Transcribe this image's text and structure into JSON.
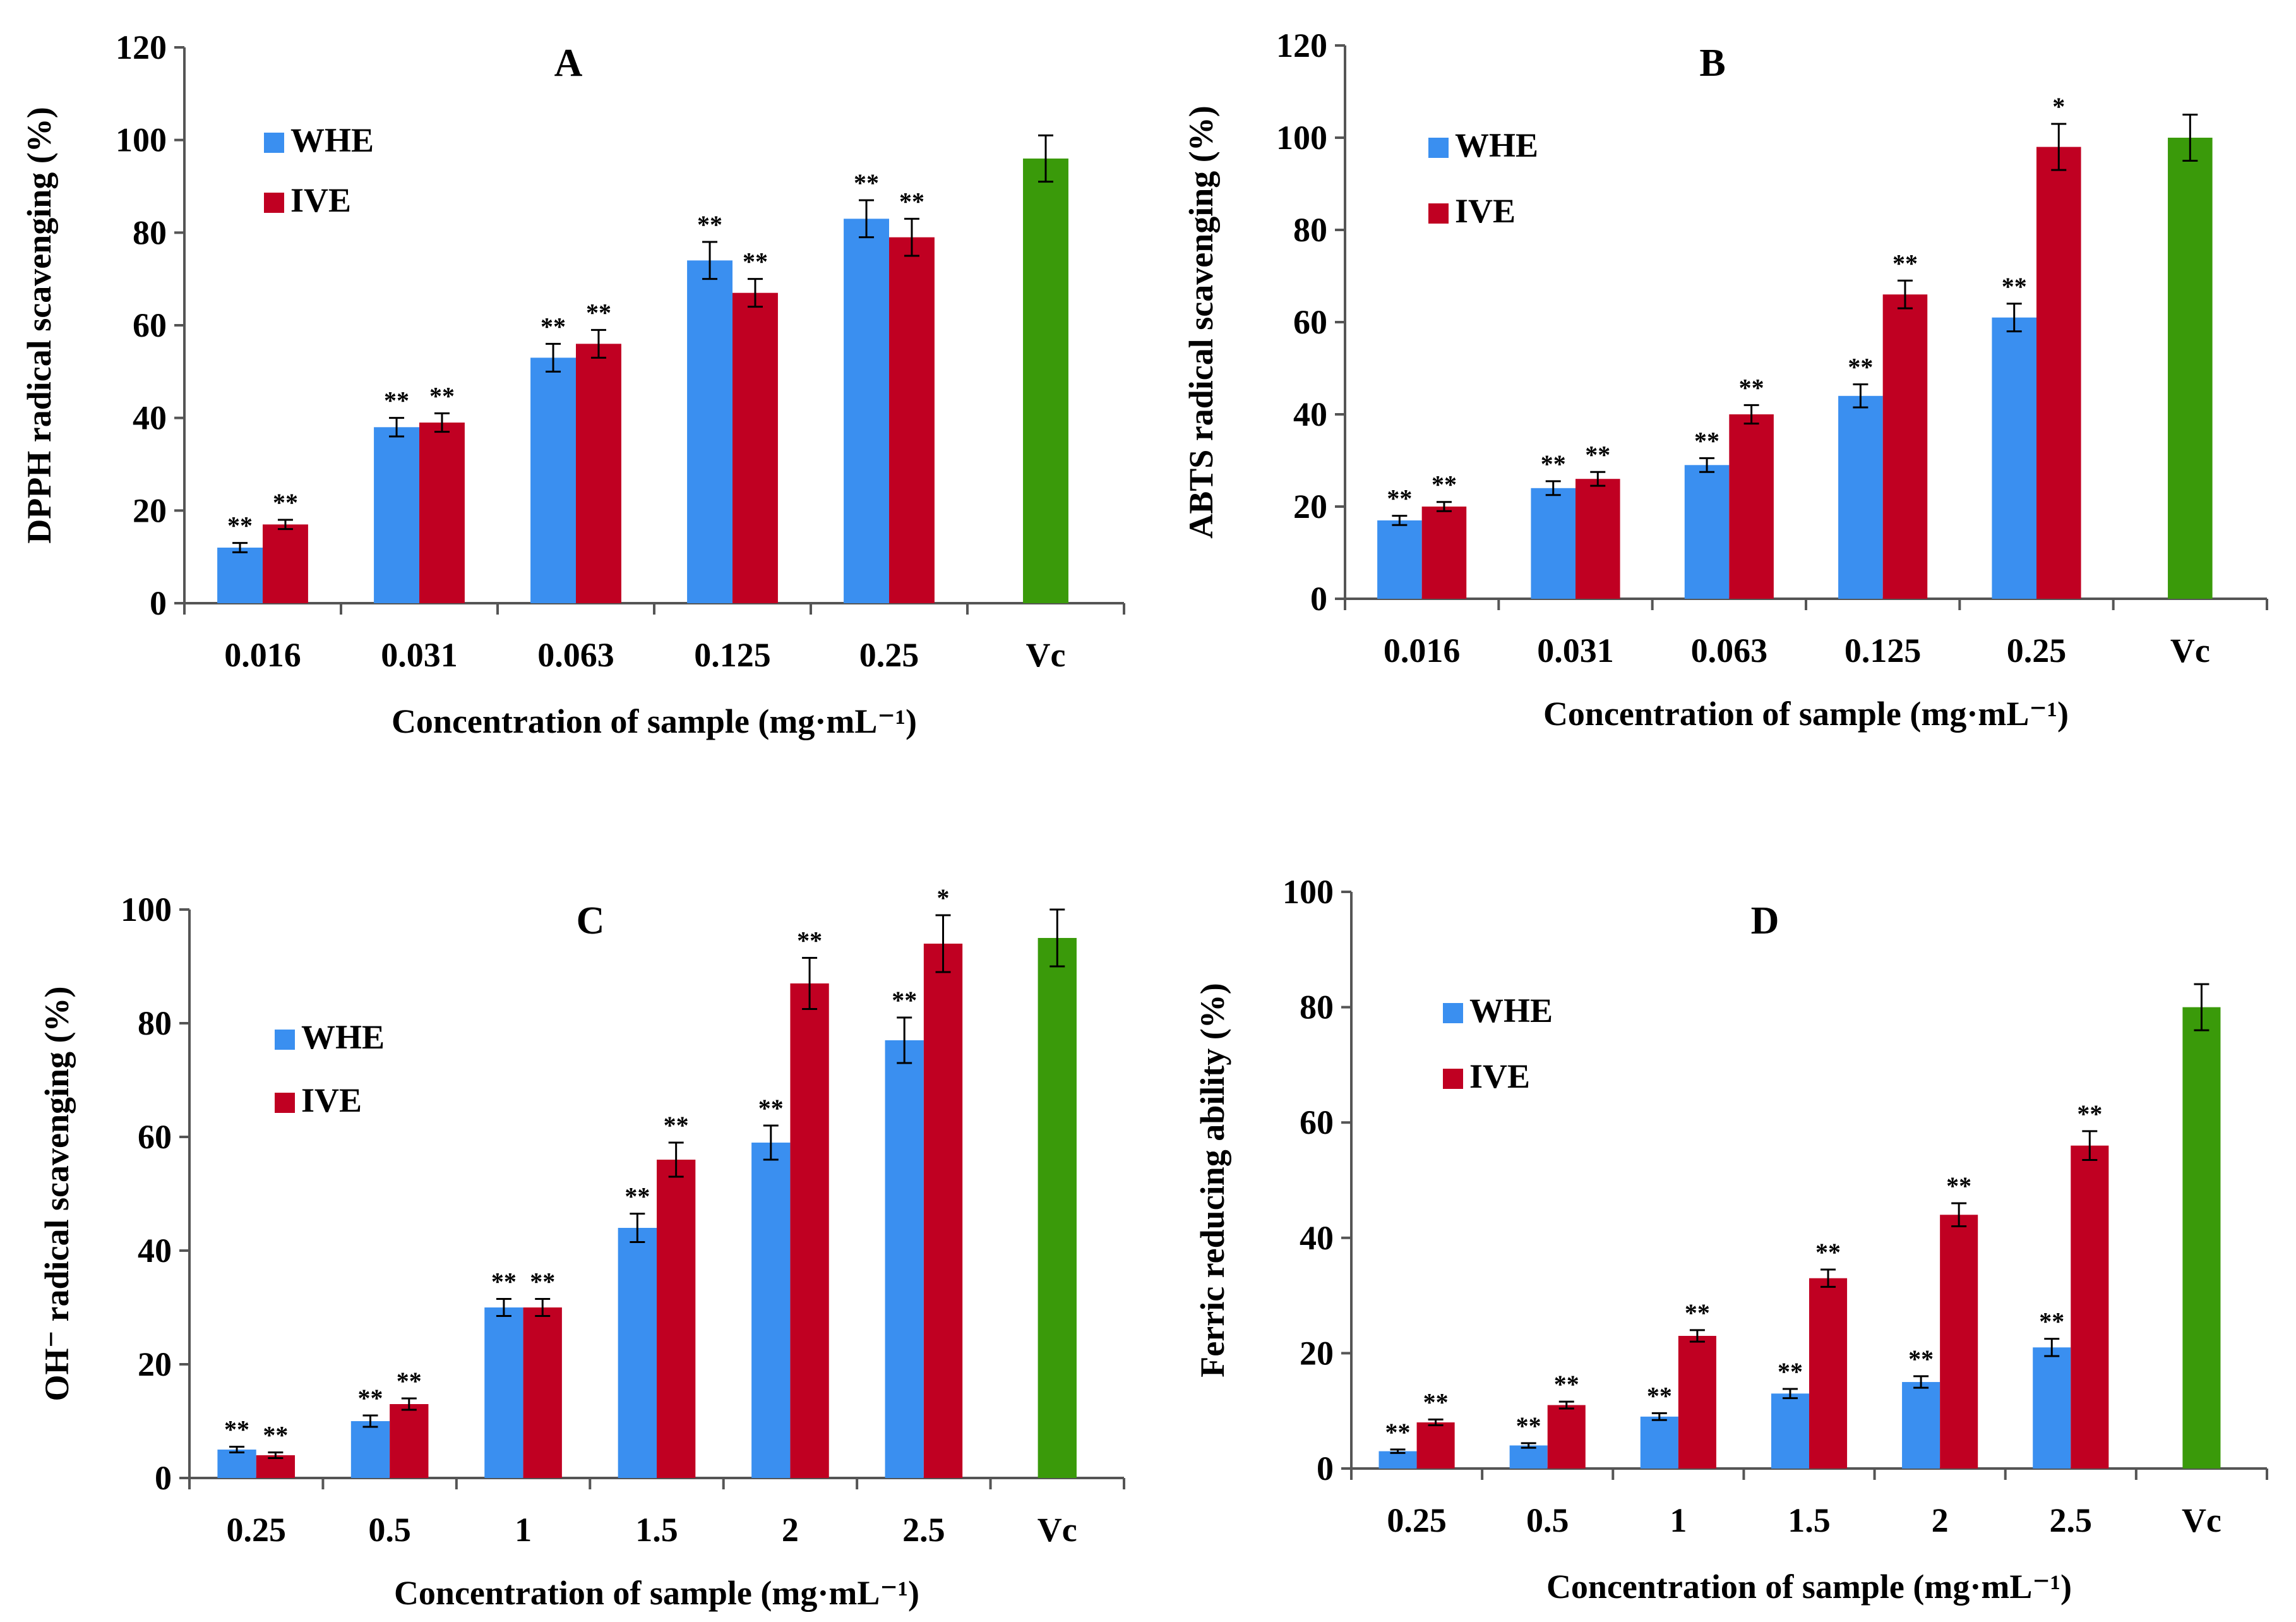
{
  "colors": {
    "WHE": "#3a8ff0",
    "IVE": "#c00022",
    "Vc": "#3a9a0a"
  },
  "chart_data": [
    {
      "type": "bar",
      "title": "A",
      "xlabel": "Concentration of sample",
      "xlabel_unit": "(mg·mL⁻¹)",
      "ylabel": "DPPH radical scavenging (%)",
      "ylim": [
        0,
        120
      ],
      "yticks": [
        0,
        20,
        40,
        60,
        80,
        100,
        120
      ],
      "categories": [
        "0.016",
        "0.031",
        "0.063",
        "0.125",
        "0.25",
        "Vc"
      ],
      "legend": [
        "WHE",
        "IVE"
      ],
      "series": [
        {
          "name": "WHE",
          "values": [
            12,
            38,
            53,
            74,
            83,
            null
          ],
          "errors": [
            1,
            2,
            3,
            4,
            4,
            null
          ],
          "sig": [
            "**",
            "**",
            "**",
            "**",
            "**",
            ""
          ]
        },
        {
          "name": "IVE",
          "values": [
            17,
            39,
            56,
            67,
            79,
            null
          ],
          "errors": [
            1,
            2,
            3,
            3,
            4,
            null
          ],
          "sig": [
            "**",
            "**",
            "**",
            "**",
            "**",
            ""
          ]
        },
        {
          "name": "Vc",
          "values": [
            null,
            null,
            null,
            null,
            null,
            96
          ],
          "errors": [
            null,
            null,
            null,
            null,
            null,
            5
          ],
          "sig": [
            "",
            "",
            "",
            "",
            "",
            ""
          ]
        }
      ]
    },
    {
      "type": "bar",
      "title": "B",
      "xlabel": "Concentration of sample",
      "xlabel_unit": "(mg·mL⁻¹)",
      "ylabel": "ABTS  radical scavenging (%)",
      "ylim": [
        0,
        120
      ],
      "yticks": [
        0,
        20,
        40,
        60,
        80,
        100,
        120
      ],
      "categories": [
        "0.016",
        "0.031",
        "0.063",
        "0.125",
        "0.25",
        "Vc"
      ],
      "legend": [
        "WHE",
        "IVE"
      ],
      "series": [
        {
          "name": "WHE",
          "values": [
            17,
            24,
            29,
            44,
            61,
            null
          ],
          "errors": [
            1,
            1.5,
            1.5,
            2.5,
            3,
            null
          ],
          "sig": [
            "**",
            "**",
            "**",
            "**",
            "**",
            ""
          ]
        },
        {
          "name": "IVE",
          "values": [
            20,
            26,
            40,
            66,
            98,
            null
          ],
          "errors": [
            1,
            1.5,
            2,
            3,
            5,
            null
          ],
          "sig": [
            "**",
            "**",
            "**",
            "**",
            "*",
            ""
          ]
        },
        {
          "name": "Vc",
          "values": [
            null,
            null,
            null,
            null,
            null,
            100
          ],
          "errors": [
            null,
            null,
            null,
            null,
            null,
            5
          ],
          "sig": [
            "",
            "",
            "",
            "",
            "",
            ""
          ]
        }
      ]
    },
    {
      "type": "bar",
      "title": "C",
      "xlabel": "Concentration of sample",
      "xlabel_unit": "(mg·mL⁻¹)",
      "ylabel": "OH⁻ radical scavenging (%)",
      "ylim": [
        0,
        100
      ],
      "yticks": [
        0,
        20,
        40,
        60,
        80,
        100
      ],
      "categories": [
        "0.25",
        "0.5",
        "1",
        "1.5",
        "2",
        "2.5",
        "Vc"
      ],
      "legend": [
        "WHE",
        "IVE"
      ],
      "series": [
        {
          "name": "WHE",
          "values": [
            5,
            10,
            30,
            44,
            59,
            77,
            null
          ],
          "errors": [
            0.5,
            1,
            1.5,
            2.5,
            3,
            4,
            null
          ],
          "sig": [
            "**",
            "**",
            "**",
            "**",
            "**",
            "**",
            ""
          ]
        },
        {
          "name": "IVE",
          "values": [
            4,
            13,
            30,
            56,
            87,
            94,
            null
          ],
          "errors": [
            0.5,
            1,
            1.5,
            3,
            4.5,
            5,
            null
          ],
          "sig": [
            "**",
            "**",
            "**",
            "**",
            "**",
            "*",
            ""
          ]
        },
        {
          "name": "Vc",
          "values": [
            null,
            null,
            null,
            null,
            null,
            null,
            95
          ],
          "errors": [
            null,
            null,
            null,
            null,
            null,
            null,
            5
          ],
          "sig": [
            "",
            "",
            "",
            "",
            "",
            "",
            ""
          ]
        }
      ]
    },
    {
      "type": "bar",
      "title": "D",
      "xlabel": "Concentration of sample",
      "xlabel_unit": "(mg·mL⁻¹)",
      "ylabel": "Ferric reducing ability (%)",
      "ylim": [
        0,
        100
      ],
      "yticks": [
        0,
        20,
        40,
        60,
        80,
        100
      ],
      "categories": [
        "0.25",
        "0.5",
        "1",
        "1.5",
        "2",
        "2.5",
        "Vc"
      ],
      "legend": [
        "WHE",
        "IVE"
      ],
      "series": [
        {
          "name": "WHE",
          "values": [
            3,
            4,
            9,
            13,
            15,
            21,
            null
          ],
          "errors": [
            0.3,
            0.4,
            0.6,
            0.8,
            1,
            1.5,
            null
          ],
          "sig": [
            "**",
            "**",
            "**",
            "**",
            "**",
            "**",
            ""
          ]
        },
        {
          "name": "IVE",
          "values": [
            8,
            11,
            23,
            33,
            44,
            56,
            null
          ],
          "errors": [
            0.5,
            0.6,
            1,
            1.5,
            2,
            2.5,
            null
          ],
          "sig": [
            "**",
            "**",
            "**",
            "**",
            "**",
            "**",
            ""
          ]
        },
        {
          "name": "Vc",
          "values": [
            null,
            null,
            null,
            null,
            null,
            null,
            80
          ],
          "errors": [
            null,
            null,
            null,
            null,
            null,
            null,
            4
          ],
          "sig": [
            "",
            "",
            "",
            "",
            "",
            "",
            ""
          ]
        }
      ]
    }
  ]
}
